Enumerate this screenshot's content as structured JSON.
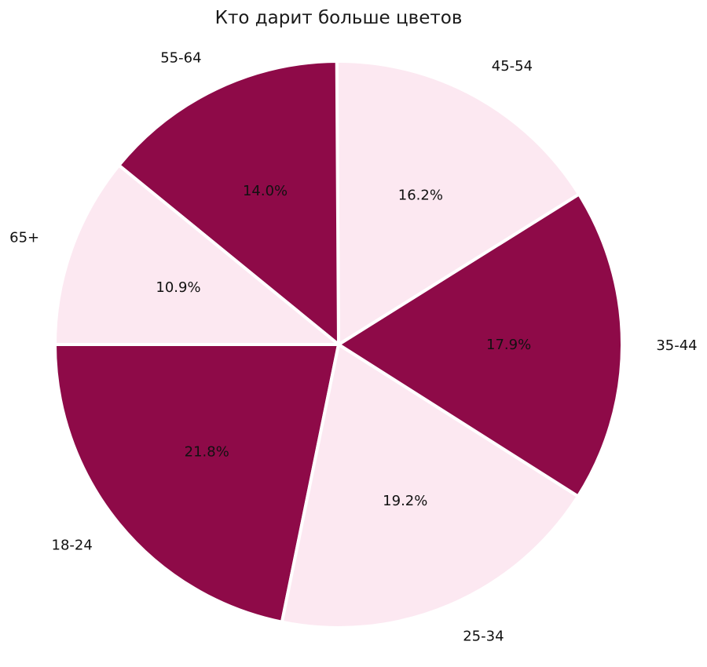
{
  "chart_data": {
    "type": "pie",
    "title": "Кто дарит больше цветов",
    "categories": [
      "18-24",
      "25-34",
      "35-44",
      "45-54",
      "55-64",
      "65+"
    ],
    "values": [
      21.8,
      19.2,
      17.9,
      16.2,
      14.0,
      10.9
    ],
    "value_labels": [
      "21.8%",
      "19.2%",
      "17.9%",
      "16.2%",
      "14.0%",
      "10.9%"
    ],
    "start_angle_deg": 180,
    "direction": "counterclockwise",
    "colors": [
      "#8e0a48",
      "#fce8f1",
      "#8e0a48",
      "#fce8f1",
      "#8e0a48",
      "#fce8f1"
    ],
    "edge_color": "#ffffff",
    "legend": "none"
  }
}
